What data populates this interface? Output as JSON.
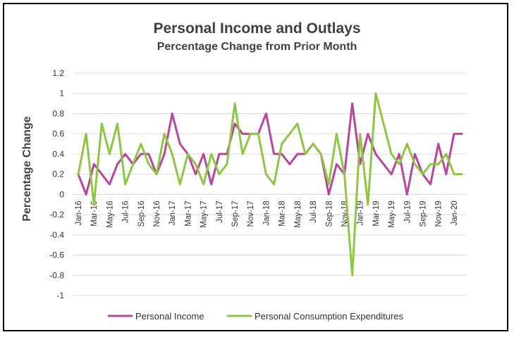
{
  "chart_data": {
    "type": "line",
    "title": "Personal Income and Outlays",
    "subtitle": "Percentage Change from Prior Month",
    "xlabel": "",
    "ylabel": "Percentage Change",
    "ylim": [
      -1,
      1.2
    ],
    "yticks": [
      "1.2",
      "1",
      "0.8",
      "0.6",
      "0.4",
      "0.2",
      "0",
      "-0.2",
      "-0.4",
      "-0.6",
      "-0.8",
      "-1"
    ],
    "x": [
      "Jan-16",
      "Feb-16",
      "Mar-16",
      "Apr-16",
      "May-16",
      "Jun-16",
      "Jul-16",
      "Aug-16",
      "Sep-16",
      "Oct-16",
      "Nov-16",
      "Dec-16",
      "Jan-17",
      "Feb-17",
      "Mar-17",
      "Apr-17",
      "May-17",
      "Jun-17",
      "Jul-17",
      "Aug-17",
      "Sep-17",
      "Oct-17",
      "Nov-17",
      "Dec-17",
      "Jan-18",
      "Feb-18",
      "Mar-18",
      "Apr-18",
      "May-18",
      "Jun-18",
      "Jul-18",
      "Aug-18",
      "Sep-18",
      "Oct-18",
      "Nov-18",
      "Dec-18",
      "Jan-19",
      "Feb-19",
      "Mar-19",
      "Apr-19",
      "May-19",
      "Jun-19",
      "Jul-19",
      "Aug-19",
      "Sep-19",
      "Oct-19",
      "Nov-19",
      "Dec-19",
      "Jan-20",
      "Feb-20"
    ],
    "xtick_labels": [
      "Jan-16",
      "Mar-16",
      "May-16",
      "Jul-16",
      "Sep-16",
      "Nov-16",
      "Jan-17",
      "Mar-17",
      "May-17",
      "Jul-17",
      "Sep-17",
      "Nov-17",
      "Jan-18",
      "Mar-18",
      "May-18",
      "Jul-18",
      "Sep-18",
      "Nov-18",
      "Jan-19",
      "Mar-19",
      "May-19",
      "Jul-19",
      "Sep-19",
      "Nov-19",
      "Jan-20"
    ],
    "grid": true,
    "legend_position": "bottom",
    "series": [
      {
        "name": "Personal Income",
        "color": "#b9449c",
        "values": [
          0.2,
          0.0,
          0.3,
          0.2,
          0.1,
          0.3,
          0.4,
          0.3,
          0.4,
          0.4,
          0.2,
          0.4,
          0.8,
          0.5,
          0.4,
          0.2,
          0.4,
          0.1,
          0.4,
          0.4,
          0.7,
          0.6,
          0.6,
          0.6,
          0.8,
          0.4,
          0.4,
          0.3,
          0.4,
          0.4,
          0.5,
          0.4,
          0.0,
          0.3,
          0.2,
          0.9,
          0.3,
          0.6,
          0.4,
          0.3,
          0.2,
          0.4,
          0.0,
          0.4,
          0.2,
          0.1,
          0.5,
          0.2,
          0.6,
          0.6
        ]
      },
      {
        "name": "Personal Consumption Expenditures",
        "color": "#8dc63f",
        "values": [
          0.2,
          0.6,
          -0.1,
          0.7,
          0.4,
          0.7,
          0.1,
          0.3,
          0.5,
          0.3,
          0.2,
          0.6,
          0.4,
          0.1,
          0.4,
          0.3,
          0.1,
          0.4,
          0.2,
          0.3,
          0.9,
          0.4,
          0.6,
          0.6,
          0.2,
          0.1,
          0.5,
          0.6,
          0.7,
          0.4,
          0.5,
          0.4,
          0.1,
          0.6,
          0.2,
          -0.8,
          0.6,
          -0.1,
          1.0,
          0.7,
          0.4,
          0.3,
          0.5,
          0.3,
          0.2,
          0.3,
          0.3,
          0.4,
          0.2,
          0.2
        ]
      }
    ]
  }
}
